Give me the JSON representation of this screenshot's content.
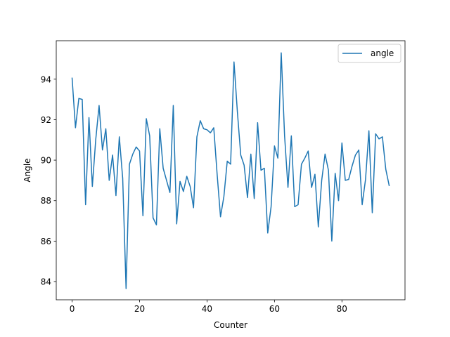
{
  "chart_data": {
    "type": "line",
    "xlabel": "Counter",
    "ylabel": "Angle",
    "xlim": [
      -4.7,
      98.7
    ],
    "ylim": [
      83.1,
      95.9
    ],
    "xticks": [
      0,
      20,
      40,
      60,
      80
    ],
    "yticks": [
      84,
      86,
      88,
      90,
      92,
      94
    ],
    "grid": false,
    "legend_position": "top-right",
    "series": [
      {
        "name": "angle",
        "color": "#1f77b4",
        "x": [
          0,
          1,
          2,
          3,
          4,
          5,
          6,
          7,
          8,
          9,
          10,
          11,
          12,
          13,
          14,
          15,
          16,
          17,
          18,
          19,
          20,
          21,
          22,
          23,
          24,
          25,
          26,
          27,
          28,
          29,
          30,
          31,
          32,
          33,
          34,
          35,
          36,
          37,
          38,
          39,
          40,
          41,
          42,
          43,
          44,
          45,
          46,
          47,
          48,
          49,
          50,
          51,
          52,
          53,
          54,
          55,
          56,
          57,
          58,
          59,
          60,
          61,
          62,
          63,
          64,
          65,
          66,
          67,
          68,
          69,
          70,
          71,
          72,
          73,
          74,
          75,
          76,
          77,
          78,
          79,
          80,
          81,
          82,
          83,
          84,
          85,
          86,
          87,
          88,
          89,
          90,
          91,
          92,
          93,
          94
        ],
        "values": [
          94.05,
          91.6,
          93.05,
          93.0,
          87.8,
          92.1,
          88.7,
          91.0,
          92.7,
          90.5,
          91.55,
          89.0,
          90.25,
          88.25,
          91.15,
          89.1,
          83.65,
          89.8,
          90.3,
          90.65,
          90.45,
          87.25,
          92.05,
          91.2,
          87.15,
          86.8,
          91.55,
          89.6,
          89.0,
          88.4,
          92.7,
          86.85,
          88.95,
          88.45,
          89.2,
          88.7,
          87.65,
          91.15,
          91.95,
          91.55,
          91.5,
          91.35,
          91.6,
          89.3,
          87.2,
          88.2,
          89.95,
          89.8,
          94.85,
          92.4,
          90.25,
          89.75,
          88.15,
          90.3,
          88.1,
          91.85,
          89.5,
          89.6,
          86.4,
          87.7,
          90.7,
          90.1,
          95.3,
          91.2,
          88.65,
          91.2,
          87.7,
          87.8,
          89.8,
          90.1,
          90.45,
          88.65,
          89.3,
          86.7,
          89.0,
          90.3,
          89.5,
          86.0,
          89.35,
          88.0,
          90.85,
          89.0,
          89.05,
          89.7,
          90.25,
          90.5,
          87.8,
          89.05,
          91.45,
          87.4,
          91.3,
          91.05,
          91.15,
          89.55,
          88.75
        ]
      }
    ]
  }
}
